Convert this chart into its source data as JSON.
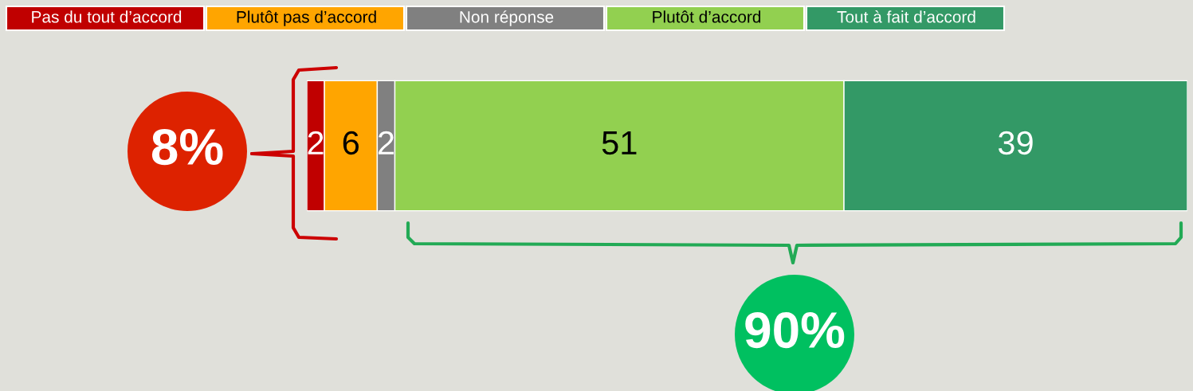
{
  "chart_data": {
    "type": "bar",
    "orientation": "horizontal",
    "stacked": true,
    "categories": [
      null
    ],
    "series": [
      {
        "name": "Pas du tout d’accord",
        "color": "#c00000",
        "values": [
          2
        ]
      },
      {
        "name": "Plutôt pas d’accord",
        "color": "#ffa500",
        "values": [
          6
        ]
      },
      {
        "name": "Non réponse",
        "color": "#808080",
        "values": [
          2
        ]
      },
      {
        "name": "Plutôt d’accord",
        "color": "#92d050",
        "values": [
          51
        ]
      },
      {
        "name": "Tout à fait d’accord",
        "color": "#339966",
        "values": [
          39
        ]
      }
    ],
    "data_labels": true,
    "legend": "top left",
    "tick_labels": false,
    "annotations": [
      "8%",
      "90%"
    ]
  }
}
